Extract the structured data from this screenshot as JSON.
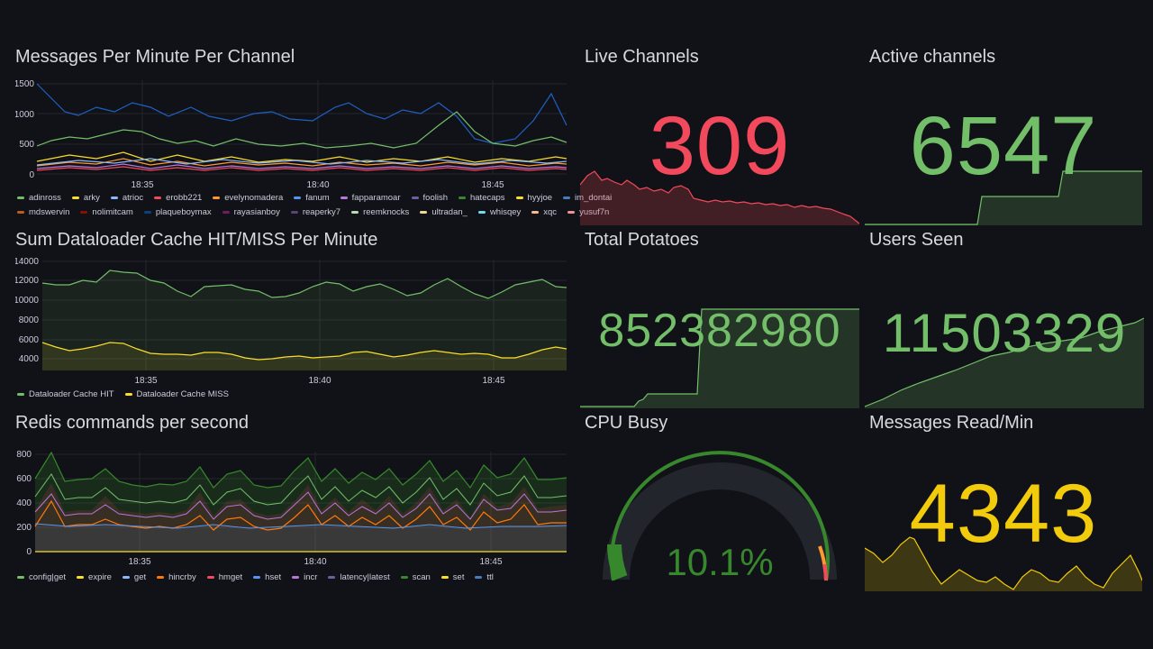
{
  "panels": {
    "messages_per_minute": {
      "title": "Messages Per Minute Per Channel",
      "y_ticks": [
        "1500",
        "1000",
        "500",
        "0"
      ],
      "x_ticks": [
        "18:35",
        "18:40",
        "18:45"
      ],
      "legend_row1": [
        "adinross",
        "arky",
        "atrioc",
        "erobb221",
        "evelynomadera",
        "fanum",
        "fapparamoar",
        "foolish",
        "hatecaps",
        "hyyjoe",
        "im_dontai"
      ],
      "legend_row2": [
        "mdswervin",
        "nolimitcam",
        "plaqueboymax",
        "rayasianboy",
        "reaperky7",
        "reemknocks",
        "ultradan_",
        "whisqey",
        "xqc",
        "yusuf7n"
      ],
      "colors_row1": [
        "#73bf69",
        "#fade2a",
        "#8ab8ff",
        "#f2495c",
        "#ff9830",
        "#5794f2",
        "#b877d9",
        "#705da0",
        "#37872d",
        "#fade2a",
        "#447ebc"
      ],
      "colors_row2": [
        "#c15c17",
        "#890f02",
        "#0a437c",
        "#6d1f62",
        "#584477",
        "#b7dbab",
        "#f4d598",
        "#70dbed",
        "#f9ba8f",
        "#f29191"
      ]
    },
    "cache": {
      "title": "Sum Dataloader Cache HIT/MISS Per Minute",
      "y_ticks": [
        "14000",
        "12000",
        "10000",
        "8000",
        "6000",
        "4000"
      ],
      "x_ticks": [
        "18:35",
        "18:40",
        "18:45"
      ],
      "legend": [
        "Dataloader Cache HIT",
        "Dataloader Cache MISS"
      ],
      "colors": [
        "#73bf69",
        "#fade2a"
      ]
    },
    "redis": {
      "title": "Redis commands per second",
      "y_ticks": [
        "800",
        "600",
        "400",
        "200",
        "0"
      ],
      "x_ticks": [
        "18:35",
        "18:40",
        "18:45"
      ],
      "legend": [
        "config|get",
        "expire",
        "get",
        "hincrby",
        "hmget",
        "hset",
        "incr",
        "latency|latest",
        "scan",
        "set",
        "ttl"
      ],
      "colors": [
        "#73bf69",
        "#fade2a",
        "#8ab8ff",
        "#ff780a",
        "#f2495c",
        "#5794f2",
        "#b877d9",
        "#705da0",
        "#37872d",
        "#fade2a",
        "#447ebc"
      ]
    },
    "live_channels": {
      "title": "Live Channels",
      "value": "309",
      "color": "#f2495c"
    },
    "active_channels": {
      "title": "Active channels",
      "value": "6547",
      "color": "#73bf69"
    },
    "total_potatoes": {
      "title": "Total Potatoes",
      "value": "852382980",
      "color": "#73bf69"
    },
    "users_seen": {
      "title": "Users Seen",
      "value": "11503329",
      "color": "#73bf69"
    },
    "cpu_busy": {
      "title": "CPU Busy",
      "value": "10.1%",
      "percent": 10.1,
      "color": "#37872d"
    },
    "messages_read": {
      "title": "Messages Read/Min",
      "value": "4343",
      "color": "#f2cc0c"
    }
  }
}
